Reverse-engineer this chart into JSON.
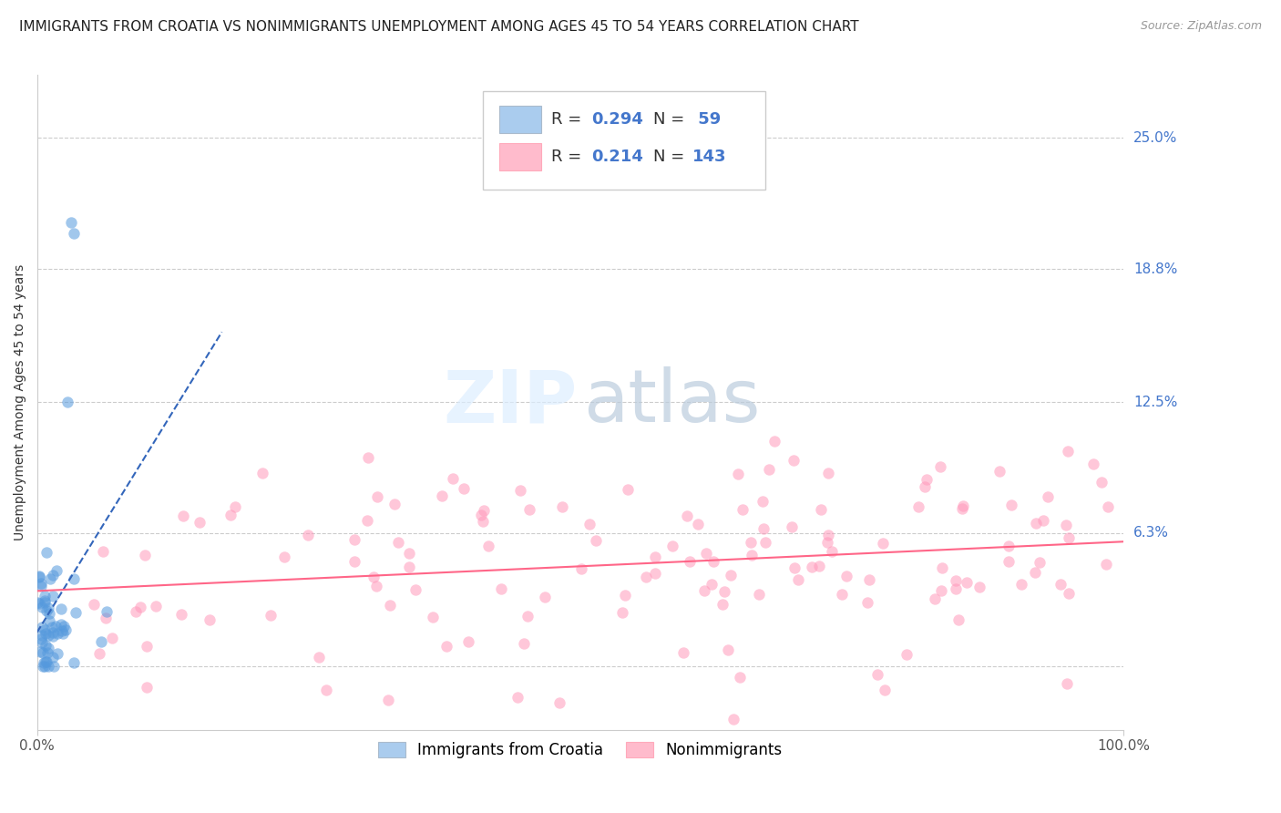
{
  "title": "IMMIGRANTS FROM CROATIA VS NONIMMIGRANTS UNEMPLOYMENT AMONG AGES 45 TO 54 YEARS CORRELATION CHART",
  "source": "Source: ZipAtlas.com",
  "ylabel": "Unemployment Among Ages 45 to 54 years",
  "xlabel": "",
  "xlim": [
    0,
    1.0
  ],
  "ylim": [
    -0.03,
    0.28
  ],
  "yticks": [
    0.0,
    0.063,
    0.125,
    0.188,
    0.25
  ],
  "ytick_labels": [
    "",
    "6.3%",
    "12.5%",
    "18.8%",
    "25.0%"
  ],
  "xticks": [
    0.0,
    1.0
  ],
  "xtick_labels": [
    "0.0%",
    "100.0%"
  ],
  "blue_scatter_color": "#5599DD",
  "pink_scatter_color": "#FF99BB",
  "trend_blue_color": "#3366BB",
  "trend_pink_color": "#FF6688",
  "grid_color": "#CCCCCC",
  "background": "#FFFFFF",
  "blue_N": 59,
  "pink_N": 143,
  "legend_blue_face": "#AACCEE",
  "legend_pink_face": "#FFBBCC",
  "title_fontsize": 11,
  "source_fontsize": 9,
  "tick_fontsize": 11,
  "ylabel_fontsize": 10,
  "legend_fontsize": 13,
  "watermark_zip_color": "#DDEEFF",
  "watermark_atlas_color": "#BBCCDD"
}
